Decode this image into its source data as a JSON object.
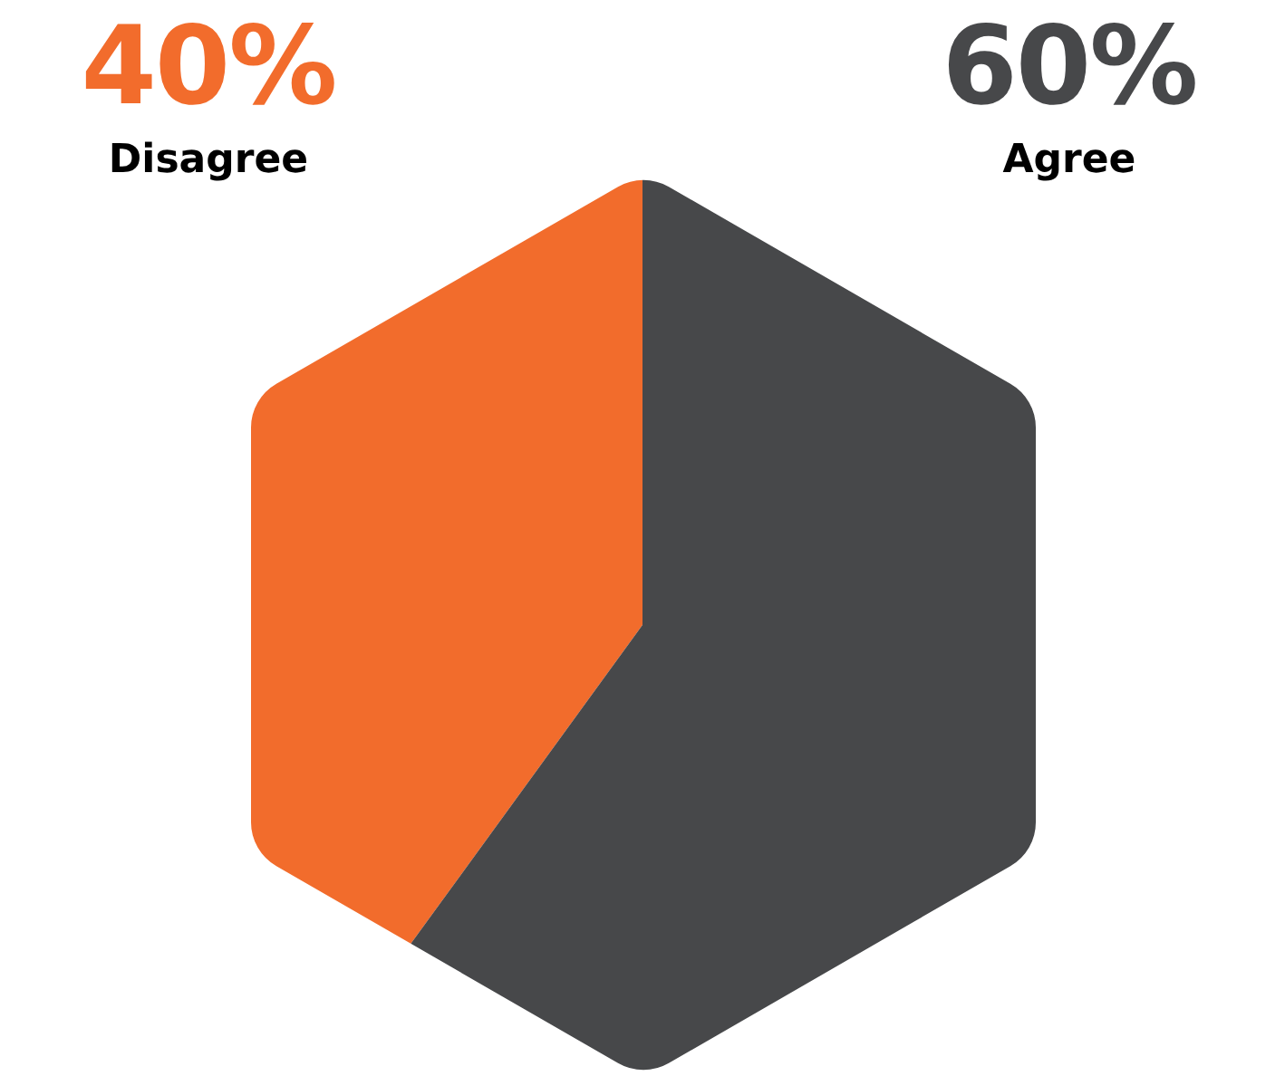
{
  "chart_data": {
    "type": "pie",
    "categories": [
      "Disagree",
      "Agree"
    ],
    "values": [
      40,
      60
    ],
    "colors": [
      "#f26c2c",
      "#47484a"
    ],
    "value_labels": [
      "40%",
      "60%"
    ]
  }
}
